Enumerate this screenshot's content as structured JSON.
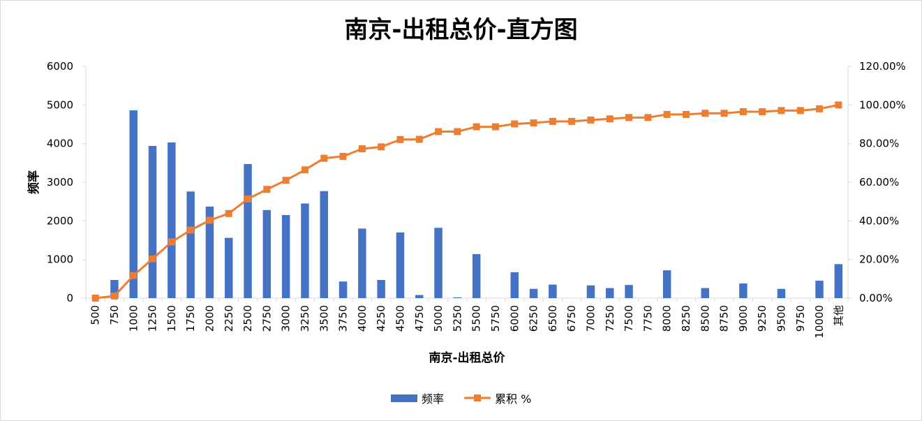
{
  "chart_data": {
    "type": "bar+line",
    "title": "南京-出租总价-直方图",
    "xlabel": "南京-出租总价",
    "ylabel": "频率",
    "y2label": "",
    "ylim": [
      0,
      6000
    ],
    "y2lim": [
      0,
      1.2
    ],
    "yticks": [
      "0",
      "1000",
      "2000",
      "3000",
      "4000",
      "5000",
      "6000"
    ],
    "y2ticks": [
      "0.00%",
      "20.00%",
      "40.00%",
      "60.00%",
      "80.00%",
      "100.00%",
      "120.00%"
    ],
    "grid": false,
    "legend_position": "bottom",
    "categories": [
      "500",
      "750",
      "1000",
      "1250",
      "1500",
      "1750",
      "2000",
      "2250",
      "2500",
      "2750",
      "3000",
      "3250",
      "3500",
      "3750",
      "4000",
      "4250",
      "4500",
      "4750",
      "5000",
      "5250",
      "5500",
      "5750",
      "6000",
      "6250",
      "6500",
      "6750",
      "7000",
      "7250",
      "7500",
      "7750",
      "8000",
      "8250",
      "8500",
      "8750",
      "9000",
      "9250",
      "9500",
      "9750",
      "10000",
      "其他"
    ],
    "series": [
      {
        "name": "频率",
        "type": "bar",
        "color": "#4472c4",
        "axis": "left",
        "values": [
          0,
          470,
          4860,
          3940,
          4030,
          2760,
          2370,
          1560,
          3470,
          2280,
          2150,
          2450,
          2770,
          430,
          1800,
          470,
          1700,
          80,
          1820,
          20,
          1140,
          0,
          670,
          240,
          350,
          0,
          330,
          260,
          340,
          0,
          720,
          0,
          260,
          0,
          380,
          0,
          240,
          0,
          450,
          880
        ]
      },
      {
        "name": "累积 %",
        "type": "line",
        "color": "#ed7d31",
        "axis": "right",
        "values": [
          0.0,
          0.011,
          0.117,
          0.203,
          0.291,
          0.352,
          0.403,
          0.438,
          0.513,
          0.563,
          0.61,
          0.664,
          0.724,
          0.734,
          0.773,
          0.783,
          0.821,
          0.822,
          0.862,
          0.862,
          0.887,
          0.887,
          0.902,
          0.907,
          0.915,
          0.915,
          0.922,
          0.928,
          0.935,
          0.935,
          0.951,
          0.951,
          0.957,
          0.957,
          0.965,
          0.965,
          0.971,
          0.971,
          0.98,
          1.0
        ]
      }
    ]
  }
}
